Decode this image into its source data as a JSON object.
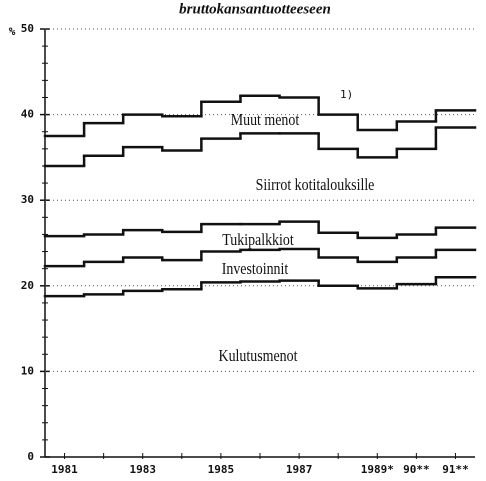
{
  "chart_data": {
    "type": "step",
    "title": "bruttokansantuotteeseen",
    "y_label": "%",
    "annotation": "1)",
    "categories": [
      "1981",
      null,
      "1983",
      null,
      "1985",
      null,
      "1987",
      null,
      "1989*",
      "90**",
      "91**"
    ],
    "series": [
      {
        "name": "Kulutusmenot",
        "color": "#111111",
        "values": [
          18.8,
          19.0,
          19.4,
          19.6,
          20.4,
          20.5,
          20.6,
          20.0,
          19.7,
          20.2,
          21.0
        ]
      },
      {
        "name": "Investoinnit",
        "color": "#111111",
        "values": [
          3.5,
          3.8,
          3.9,
          3.4,
          3.6,
          3.7,
          3.7,
          3.3,
          3.1,
          3.1,
          3.2
        ]
      },
      {
        "name": "Tukipalkkiot",
        "color": "#111111",
        "values": [
          3.5,
          3.2,
          3.2,
          3.3,
          3.2,
          3.0,
          3.2,
          2.9,
          2.8,
          2.7,
          2.6
        ]
      },
      {
        "name": "Siirrot kotitalouksille",
        "color": "#111111",
        "values": [
          8.2,
          9.2,
          9.7,
          9.5,
          10.0,
          10.6,
          10.3,
          9.8,
          9.4,
          10.0,
          11.7
        ]
      },
      {
        "name": "Muut menot",
        "color": "#111111",
        "values": [
          3.5,
          3.8,
          3.8,
          4.0,
          4.3,
          4.4,
          4.2,
          4.0,
          3.2,
          3.2,
          2.0
        ]
      }
    ],
    "stacked": true,
    "ylim": [
      0,
      50
    ],
    "yticks": [
      0,
      10,
      20,
      30,
      40,
      50
    ],
    "yminorticks": [
      2,
      4,
      6,
      8,
      12,
      14,
      16,
      18,
      22,
      24,
      26,
      28,
      32,
      34,
      36,
      38,
      42,
      44,
      46,
      48
    ],
    "grid": true
  }
}
